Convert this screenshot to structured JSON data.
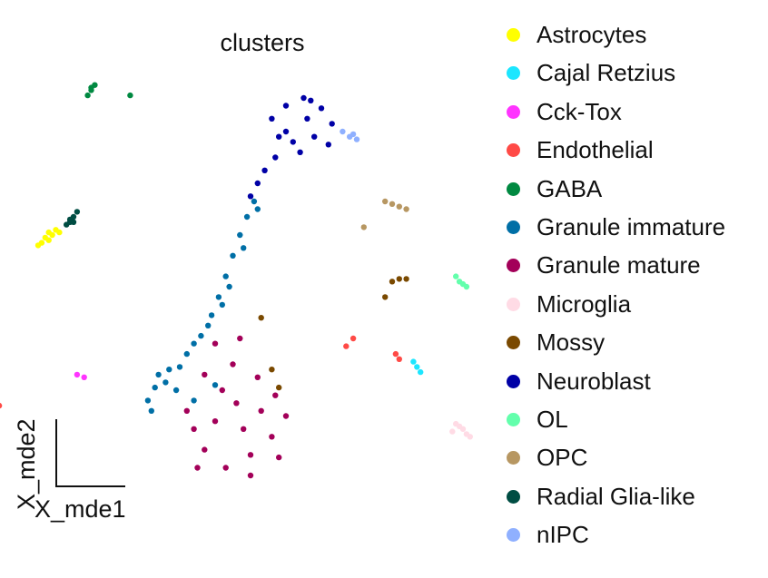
{
  "chart_data": {
    "type": "scatter",
    "title": "clusters",
    "xlabel": "X_mde1",
    "ylabel": "X_mde2",
    "legend_position": "right",
    "grid": false,
    "clusters": [
      {
        "name": "Astrocytes",
        "color": "#ffff00",
        "points": [
          [
            -0.19,
            0.57
          ],
          [
            -0.17,
            0.61
          ],
          [
            -0.18,
            0.59
          ],
          [
            -0.16,
            0.6
          ],
          [
            -0.15,
            0.62
          ],
          [
            -0.2,
            0.56
          ],
          [
            -0.14,
            0.61
          ],
          [
            -0.17,
            0.58
          ]
        ]
      },
      {
        "name": "Cajal Retzius",
        "color": "#1ce6ff",
        "points": [
          [
            0.86,
            0.11
          ],
          [
            0.88,
            0.07
          ],
          [
            0.87,
            0.09
          ]
        ]
      },
      {
        "name": "Cck-Tox",
        "color": "#ff34ff",
        "points": [
          [
            -0.09,
            0.06
          ],
          [
            -0.07,
            0.05
          ]
        ]
      },
      {
        "name": "Endothelial",
        "color": "#ff4a46",
        "points": [
          [
            -0.34,
            -0.05
          ],
          [
            -0.32,
            -0.08
          ],
          [
            -0.33,
            -0.07
          ],
          [
            -0.31,
            -0.06
          ],
          [
            -0.35,
            -0.04
          ],
          [
            0.69,
            0.2
          ],
          [
            0.67,
            0.17
          ],
          [
            0.81,
            0.14
          ],
          [
            0.82,
            0.12
          ]
        ]
      },
      {
        "name": "GABA",
        "color": "#008941",
        "points": [
          [
            -0.06,
            1.14
          ],
          [
            -0.05,
            1.16
          ],
          [
            -0.04,
            1.18
          ],
          [
            -0.05,
            1.17
          ],
          [
            0.06,
            1.14
          ]
        ]
      },
      {
        "name": "Granule immature",
        "color": "#006fa6",
        "points": [
          [
            0.41,
            0.73
          ],
          [
            0.39,
            0.67
          ],
          [
            0.37,
            0.6
          ],
          [
            0.35,
            0.52
          ],
          [
            0.33,
            0.44
          ],
          [
            0.31,
            0.36
          ],
          [
            0.29,
            0.29
          ],
          [
            0.26,
            0.21
          ],
          [
            0.22,
            0.14
          ],
          [
            0.17,
            0.08
          ],
          [
            0.13,
            0.01
          ],
          [
            0.11,
            -0.04
          ],
          [
            0.12,
            -0.08
          ],
          [
            0.16,
            0.03
          ],
          [
            0.2,
            0.09
          ],
          [
            0.24,
            0.18
          ],
          [
            0.28,
            0.25
          ],
          [
            0.32,
            0.33
          ],
          [
            0.34,
            0.4
          ],
          [
            0.38,
            0.55
          ],
          [
            0.42,
            0.7
          ],
          [
            0.3,
            0.02
          ],
          [
            0.24,
            -0.04
          ],
          [
            0.14,
            0.06
          ],
          [
            0.19,
            0.0
          ]
        ]
      },
      {
        "name": "Granule mature",
        "color": "#a30059",
        "points": [
          [
            0.27,
            0.06
          ],
          [
            0.35,
            0.1
          ],
          [
            0.42,
            0.05
          ],
          [
            0.47,
            -0.02
          ],
          [
            0.5,
            -0.1
          ],
          [
            0.46,
            -0.18
          ],
          [
            0.4,
            -0.25
          ],
          [
            0.33,
            -0.3
          ],
          [
            0.27,
            -0.23
          ],
          [
            0.24,
            -0.15
          ],
          [
            0.22,
            -0.08
          ],
          [
            0.3,
            -0.12
          ],
          [
            0.38,
            -0.15
          ],
          [
            0.43,
            -0.08
          ],
          [
            0.36,
            -0.05
          ],
          [
            0.32,
            0.0
          ],
          [
            0.4,
            -0.33
          ],
          [
            0.48,
            -0.26
          ],
          [
            0.25,
            -0.3
          ],
          [
            0.3,
            0.18
          ],
          [
            0.37,
            0.2
          ]
        ]
      },
      {
        "name": "Microglia",
        "color": "#ffdbe5",
        "points": [
          [
            0.98,
            -0.13
          ],
          [
            1.0,
            -0.15
          ],
          [
            1.01,
            -0.17
          ],
          [
            0.99,
            -0.14
          ],
          [
            1.02,
            -0.18
          ],
          [
            0.97,
            -0.16
          ]
        ]
      },
      {
        "name": "Mossy",
        "color": "#7a4900",
        "points": [
          [
            0.8,
            0.42
          ],
          [
            0.82,
            0.43
          ],
          [
            0.84,
            0.43
          ],
          [
            0.78,
            0.36
          ],
          [
            0.43,
            0.28
          ],
          [
            0.46,
            0.08
          ],
          [
            0.48,
            0.01
          ]
        ]
      },
      {
        "name": "Neuroblast",
        "color": "#0000a6",
        "points": [
          [
            0.46,
            1.05
          ],
          [
            0.5,
            1.1
          ],
          [
            0.55,
            1.13
          ],
          [
            0.6,
            1.09
          ],
          [
            0.63,
            1.03
          ],
          [
            0.58,
            0.98
          ],
          [
            0.52,
            0.96
          ],
          [
            0.47,
            0.9
          ],
          [
            0.44,
            0.85
          ],
          [
            0.42,
            0.8
          ],
          [
            0.4,
            0.75
          ],
          [
            0.56,
            1.05
          ],
          [
            0.62,
            0.95
          ],
          [
            0.5,
            1.0
          ],
          [
            0.54,
            0.92
          ],
          [
            0.57,
            1.12
          ],
          [
            0.48,
            0.98
          ]
        ]
      },
      {
        "name": "OL",
        "color": "#63ffac",
        "points": [
          [
            0.98,
            0.44
          ],
          [
            0.99,
            0.42
          ],
          [
            1.0,
            0.41
          ],
          [
            1.01,
            0.4
          ]
        ]
      },
      {
        "name": "OPC",
        "color": "#b79762",
        "points": [
          [
            0.78,
            0.73
          ],
          [
            0.8,
            0.72
          ],
          [
            0.82,
            0.71
          ],
          [
            0.84,
            0.7
          ],
          [
            0.72,
            0.63
          ]
        ]
      },
      {
        "name": "Radial Glia-like",
        "color": "#004d43",
        "points": [
          [
            -0.12,
            0.64
          ],
          [
            -0.11,
            0.65
          ],
          [
            -0.1,
            0.65
          ],
          [
            -0.1,
            0.67
          ],
          [
            -0.11,
            0.66
          ],
          [
            -0.09,
            0.69
          ]
        ]
      },
      {
        "name": "nIPC",
        "color": "#8fb0ff",
        "points": [
          [
            0.66,
            1.0
          ],
          [
            0.68,
            0.98
          ],
          [
            0.7,
            0.97
          ],
          [
            0.69,
            0.99
          ]
        ]
      }
    ]
  }
}
